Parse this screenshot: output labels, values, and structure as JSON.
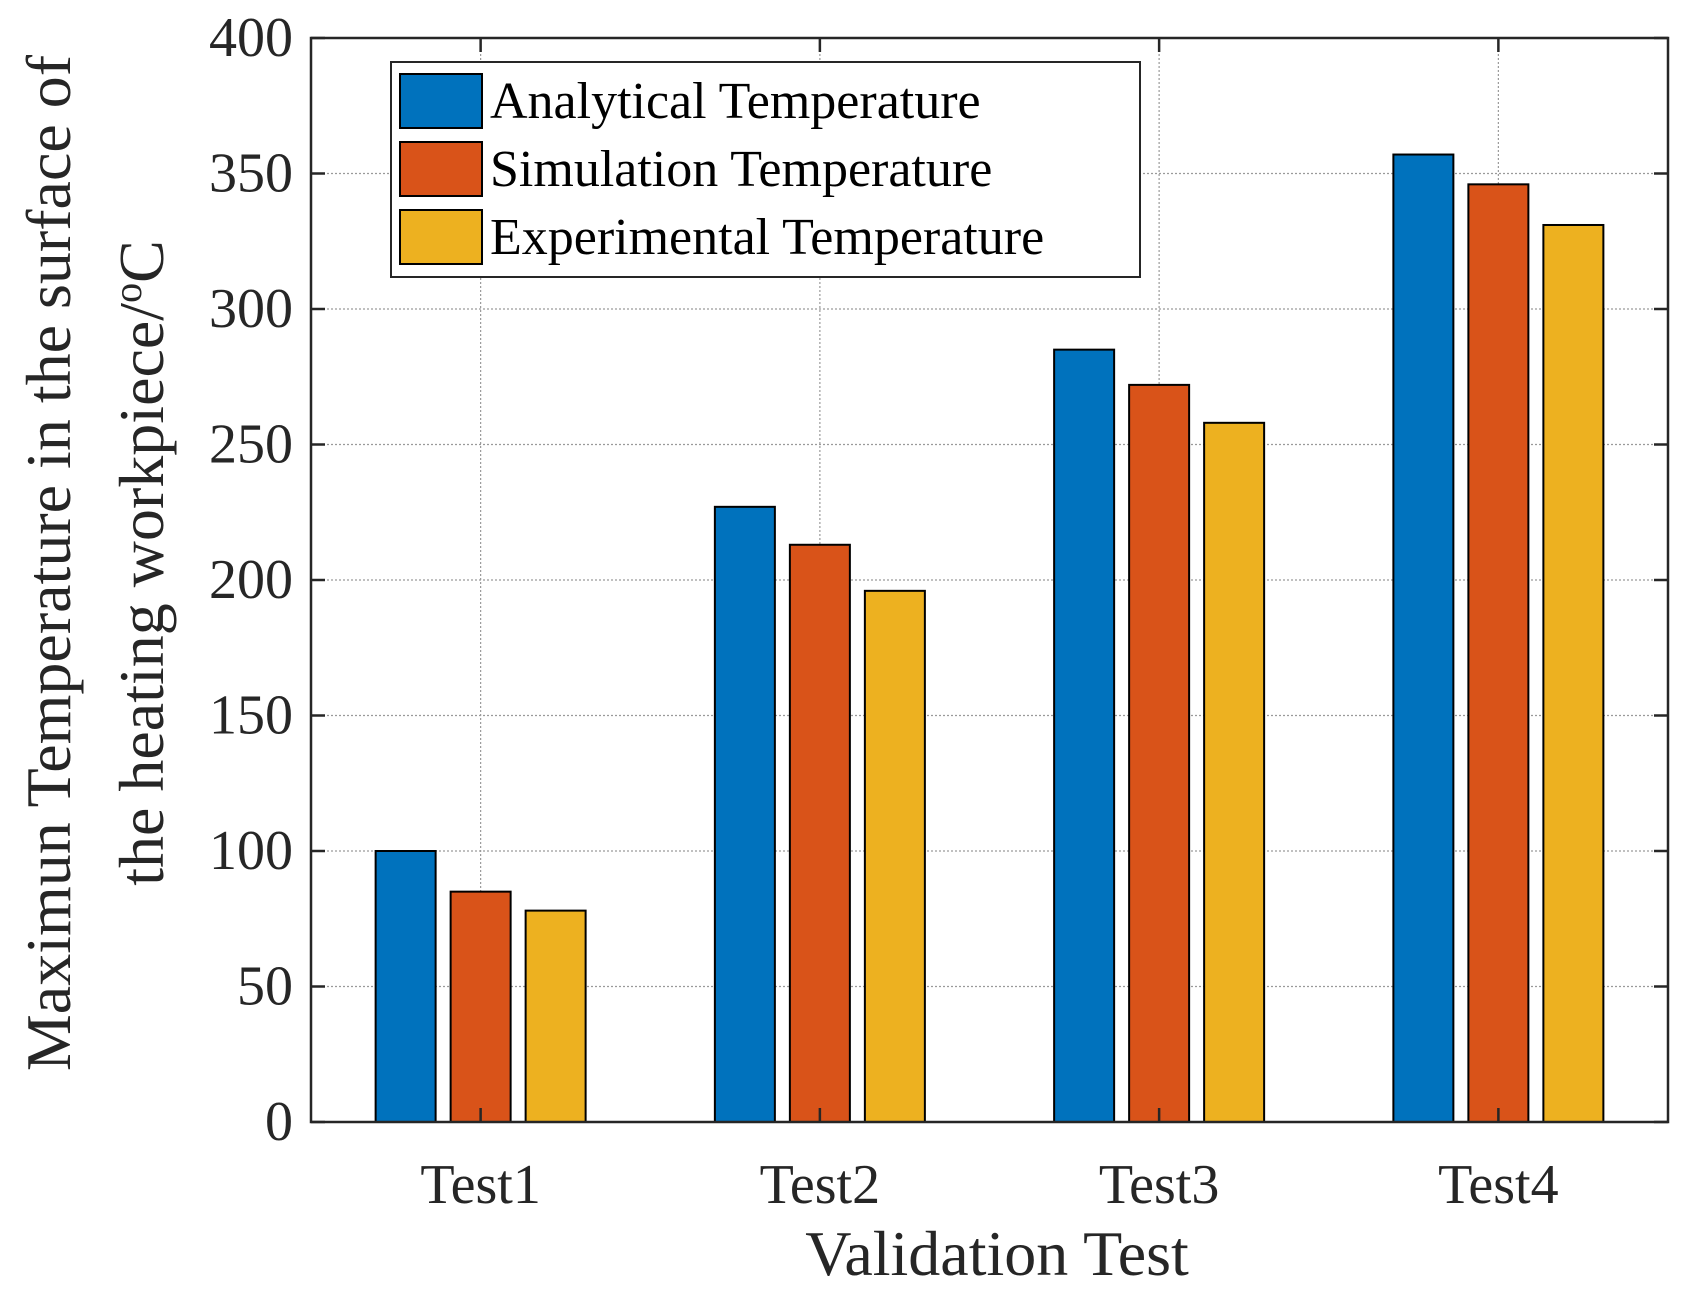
{
  "chart_data": {
    "type": "bar",
    "categories": [
      "Test1",
      "Test2",
      "Test3",
      "Test4"
    ],
    "series": [
      {
        "name": "Analytical Temperature",
        "color": "#0072BD",
        "values": [
          100,
          227,
          285,
          357
        ]
      },
      {
        "name": "Simulation Temperature",
        "color": "#D95319",
        "values": [
          85,
          213,
          272,
          346
        ]
      },
      {
        "name": "Experimental Temperature",
        "color": "#EDB120",
        "values": [
          78,
          196,
          258,
          331
        ]
      }
    ],
    "xlabel": "Validation Test",
    "ylabel_line1": "Maximun Temperature in the surface of",
    "ylabel_line2_main": "the heating workpiece/",
    "ylabel_line2_sup": "o",
    "ylabel_line2_end": "C",
    "ylim": [
      0,
      400
    ],
    "yticks": [
      0,
      50,
      100,
      150,
      200,
      250,
      300,
      350,
      400
    ],
    "ytick_labels": [
      "0",
      "50",
      "100",
      "150",
      "200",
      "250",
      "300",
      "350",
      "400"
    ],
    "grid": true,
    "legend_position": "top-left"
  }
}
